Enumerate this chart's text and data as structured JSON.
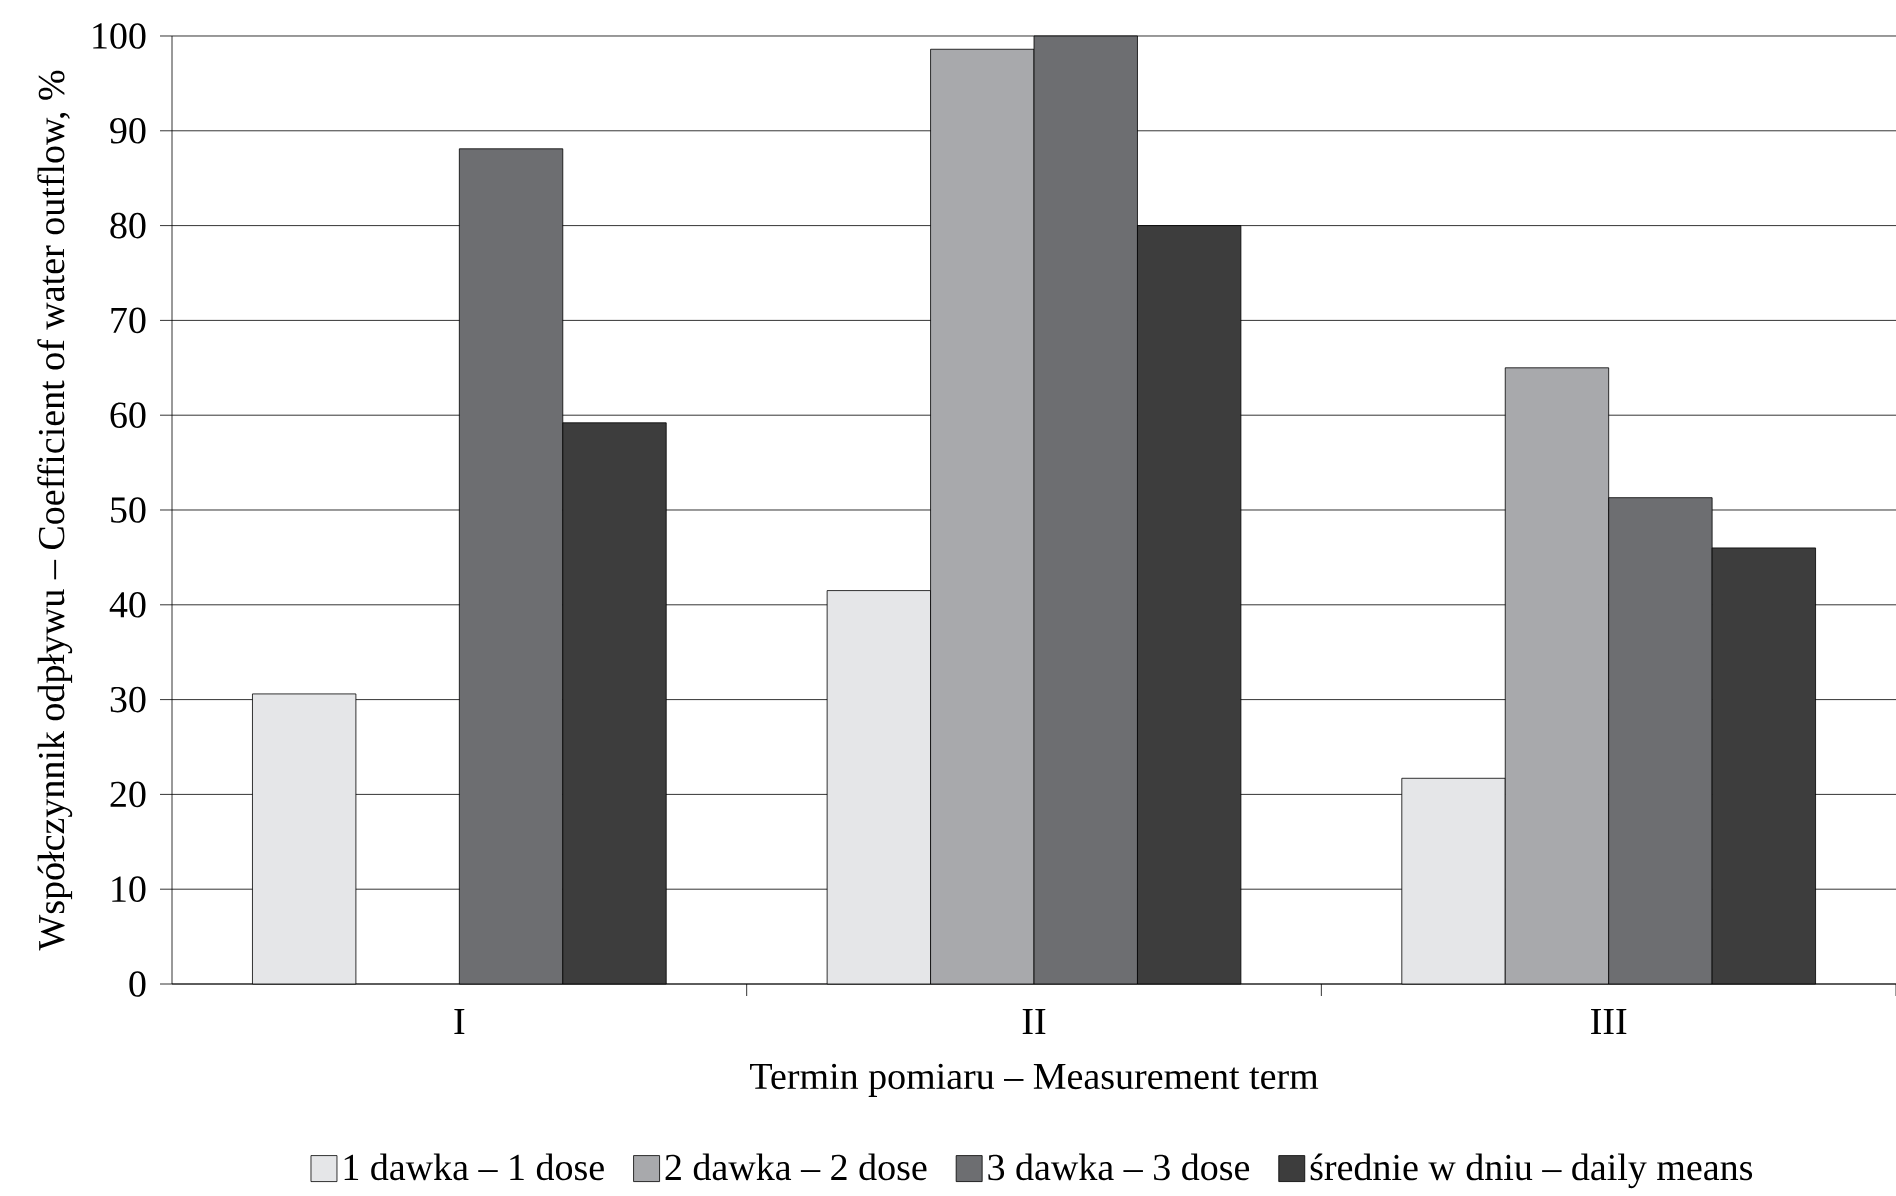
{
  "chart_data": {
    "type": "bar",
    "xlabel": "Termin pomiaru – Measurement term",
    "ylabel": "Współczynnik odpływu – Coefficient of water outflow, %",
    "categories": [
      "I",
      "II",
      "III"
    ],
    "series": [
      {
        "name": "1 dawka – 1 dose",
        "color": "#e5e6e8",
        "values": [
          30.6,
          41.5,
          21.7
        ]
      },
      {
        "name": "2 dawka – 2 dose",
        "color": "#a8a9ac",
        "values": [
          null,
          98.6,
          65.0
        ]
      },
      {
        "name": "3 dawka – 3 dose",
        "color": "#6d6e71",
        "values": [
          88.1,
          100.0,
          51.3
        ]
      },
      {
        "name": "średnie w dniu – daily means",
        "color": "#3d3d3d",
        "values": [
          59.2,
          80.0,
          46.0
        ]
      }
    ],
    "ylim": [
      0,
      100
    ],
    "yticks": [
      0,
      10,
      20,
      30,
      40,
      50,
      60,
      70,
      80,
      90,
      100
    ],
    "grid": "y",
    "legend": "bottom"
  }
}
